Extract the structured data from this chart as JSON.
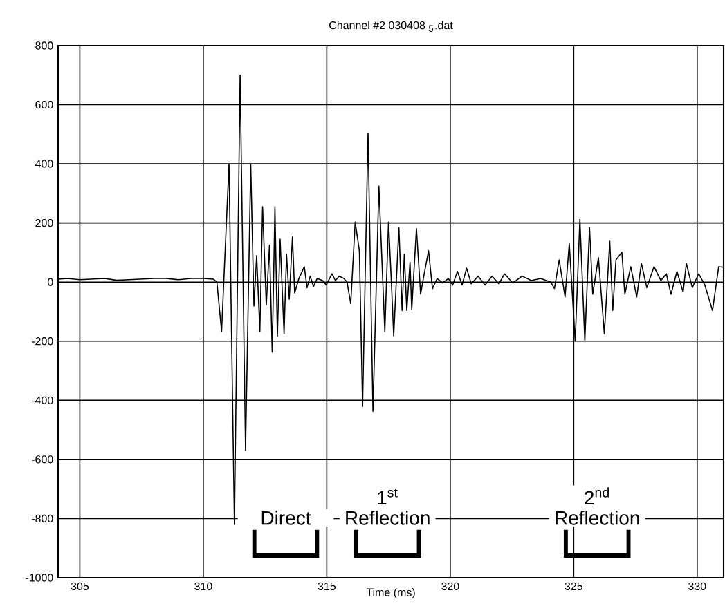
{
  "chart_data": {
    "type": "line",
    "title": "Channel #2  030408 $_{5}$.dat",
    "xlabel": "Time (ms)",
    "xlim": [
      304.12,
      331.07
    ],
    "xticks": [
      305,
      310,
      315,
      320,
      325,
      330
    ],
    "ylim": [
      -1000,
      800
    ],
    "yticks": [
      -1000,
      -800,
      -600,
      -400,
      -200,
      0,
      200,
      400,
      600,
      800
    ],
    "grid": true,
    "marker": "none",
    "line_style": "solid",
    "x": [
      304.12,
      304.5,
      305,
      305.5,
      306,
      306.5,
      307,
      307.5,
      308,
      308.5,
      309,
      309.5,
      310,
      310.4,
      310.55,
      310.74,
      311.04,
      311.26,
      311.49,
      311.71,
      311.92,
      312.05,
      312.16,
      312.29,
      312.4,
      312.55,
      312.68,
      312.79,
      312.9,
      313.0,
      313.11,
      313.27,
      313.37,
      313.48,
      313.61,
      313.7,
      313.87,
      314.09,
      314.2,
      314.33,
      314.46,
      314.61,
      314.83,
      314.98,
      315.21,
      315.35,
      315.5,
      315.69,
      315.82,
      315.97,
      316.15,
      316.32,
      316.45,
      316.67,
      316.87,
      317.11,
      317.35,
      317.5,
      317.63,
      317.71,
      317.92,
      318.05,
      318.14,
      318.24,
      318.37,
      318.44,
      318.63,
      318.8,
      318.91,
      319.12,
      319.28,
      319.47,
      319.69,
      319.92,
      320.1,
      320.29,
      320.48,
      320.66,
      320.85,
      321.13,
      321.41,
      321.69,
      321.97,
      322.2,
      322.53,
      322.91,
      323.28,
      323.66,
      324.07,
      324.22,
      324.41,
      324.65,
      324.82,
      325.06,
      325.25,
      325.45,
      325.64,
      325.77,
      326.0,
      326.24,
      326.46,
      326.58,
      326.71,
      326.95,
      327.07,
      327.31,
      327.55,
      327.74,
      327.96,
      328.25,
      328.53,
      328.75,
      328.94,
      329.18,
      329.43,
      329.56,
      329.8,
      330.06,
      330.31,
      330.62,
      330.87,
      331.07
    ],
    "series": [
      {
        "color": "#000000",
        "values": [
          10,
          12,
          8,
          10,
          12,
          6,
          8,
          10,
          12,
          12,
          8,
          12,
          12,
          10,
          0,
          -167,
          400,
          -820,
          700,
          -570,
          400,
          -81,
          90,
          -167,
          255,
          -78,
          125,
          -237,
          255,
          -183,
          145,
          -175,
          94,
          -58,
          153,
          -37,
          12,
          52,
          -19,
          20,
          -15,
          12,
          5,
          -10,
          28,
          5,
          20,
          12,
          0,
          -73,
          203,
          106,
          -421,
          504,
          -437,
          325,
          -167,
          203,
          -27,
          -182,
          184,
          -96,
          94,
          -96,
          67,
          -93,
          181,
          -41,
          12,
          106,
          -22,
          12,
          -3,
          12,
          -10,
          36,
          -10,
          47,
          -6,
          20,
          -10,
          20,
          -6,
          28,
          -3,
          20,
          5,
          12,
          0,
          -22,
          75,
          -50,
          130,
          -200,
          212,
          -200,
          184,
          -41,
          83,
          -175,
          138,
          -96,
          75,
          101,
          -41,
          52,
          -50,
          63,
          -19,
          52,
          5,
          28,
          -41,
          36,
          -34,
          63,
          -19,
          28,
          -10,
          -96,
          52,
          50
        ]
      }
    ],
    "annotations": [
      "Direct",
      "1$^{st}$ Reflection",
      "2$^{nd}$ Reflection"
    ]
  }
}
